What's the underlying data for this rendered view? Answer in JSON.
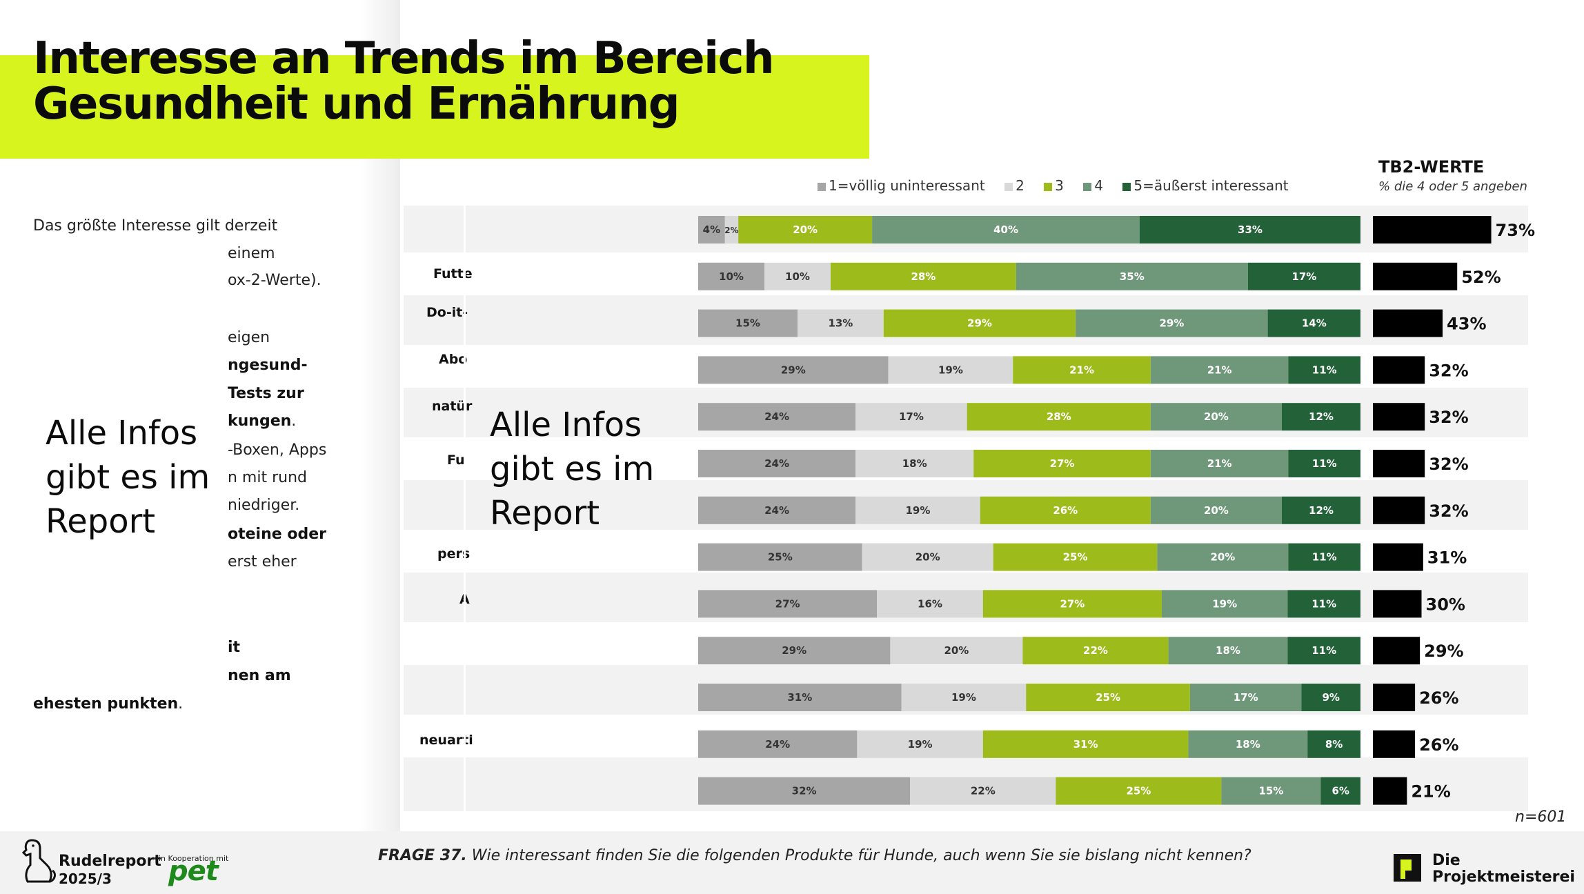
{
  "title_line1": "Interesse an Trends im Bereich",
  "title_line2": "Gesundheit und Ernährung",
  "intro": {
    "line1": "Das größte Interesse gilt derzeit",
    "f_einem": "einem",
    "f_box": "ox-2-Werte).",
    "f_zeigen": "eigen",
    "f_gesund": "ngesund-",
    "f_tests": "Tests zur",
    "f_kungen": "kungen",
    "f_kungen_dot": ".",
    "f_boxen": "-Boxen, Apps",
    "f_rund": "n mit rund",
    "f_niedriger": "niedriger.",
    "f_proteine": "oteine oder",
    "f_erst": "erst eher",
    "f_it": "it",
    "f_nen": "nen am",
    "f_ehesten": "ehesten punkten",
    "f_ehesten_dot": "."
  },
  "overlay_text": {
    "left": [
      "Alle Infos",
      "gibt es im",
      "Report"
    ],
    "center": [
      "Alle Infos",
      "gibt es im",
      "Report"
    ]
  },
  "row_label_fragments": [
    "Futte",
    "Do-it-",
    "Abo",
    "natür",
    "Fu",
    "pers",
    "A",
    "neuarti"
  ],
  "legend": {
    "items": [
      "1=völlig uninteressant",
      "2",
      "3",
      "4",
      "5=äußerst interessant"
    ]
  },
  "colors": {
    "seg1": "#a6a6a6",
    "seg2": "#d9d9d9",
    "seg3": "#9dbb1a",
    "seg4": "#6f977a",
    "seg5": "#236238",
    "tb2": "#000000",
    "accent": "#d7f41e"
  },
  "tb2": {
    "title": "TB2-WERTE",
    "subtitle": "% die 4 oder 5 angeben"
  },
  "chart_data": {
    "type": "bar",
    "orientation": "horizontal-stacked",
    "series_names": [
      "1=völlig uninteressant",
      "2",
      "3",
      "4",
      "5=äußerst interessant"
    ],
    "rows": [
      {
        "values": [
          4,
          2,
          20,
          40,
          33
        ],
        "labels": [
          "4%",
          "2%",
          "20%",
          "40%",
          "33%"
        ],
        "tb2": 73,
        "tb2_label": "73%"
      },
      {
        "values": [
          10,
          10,
          28,
          35,
          17
        ],
        "labels": [
          "10%",
          "10%",
          "28%",
          "35%",
          "17%"
        ],
        "tb2": 52,
        "tb2_label": "52%"
      },
      {
        "values": [
          15,
          13,
          29,
          29,
          14
        ],
        "labels": [
          "15%",
          "13%",
          "29%",
          "29%",
          "14%"
        ],
        "tb2": 43,
        "tb2_label": "43%"
      },
      {
        "values": [
          29,
          19,
          21,
          21,
          11
        ],
        "labels": [
          "29%",
          "19%",
          "21%",
          "21%",
          "11%"
        ],
        "tb2": 32,
        "tb2_label": "32%"
      },
      {
        "values": [
          24,
          17,
          28,
          20,
          12
        ],
        "labels": [
          "24%",
          "17%",
          "28%",
          "20%",
          "12%"
        ],
        "tb2": 32,
        "tb2_label": "32%"
      },
      {
        "values": [
          24,
          18,
          27,
          21,
          11
        ],
        "labels": [
          "24%",
          "18%",
          "27%",
          "21%",
          "11%"
        ],
        "tb2": 32,
        "tb2_label": "32%"
      },
      {
        "values": [
          24,
          19,
          26,
          20,
          12
        ],
        "labels": [
          "24%",
          "19%",
          "26%",
          "20%",
          "12%"
        ],
        "tb2": 32,
        "tb2_label": "32%"
      },
      {
        "values": [
          25,
          20,
          25,
          20,
          11
        ],
        "labels": [
          "25%",
          "20%",
          "25%",
          "20%",
          "11%"
        ],
        "tb2": 31,
        "tb2_label": "31%"
      },
      {
        "values": [
          27,
          16,
          27,
          19,
          11
        ],
        "labels": [
          "27%",
          "16%",
          "27%",
          "19%",
          "11%"
        ],
        "tb2": 30,
        "tb2_label": "30%"
      },
      {
        "values": [
          29,
          20,
          22,
          18,
          11
        ],
        "labels": [
          "29%",
          "20%",
          "22%",
          "18%",
          "11%"
        ],
        "tb2": 29,
        "tb2_label": "29%"
      },
      {
        "values": [
          31,
          19,
          25,
          17,
          9
        ],
        "labels": [
          "31%",
          "19%",
          "25%",
          "17%",
          "9%"
        ],
        "tb2": 26,
        "tb2_label": "26%"
      },
      {
        "values": [
          24,
          19,
          31,
          18,
          8
        ],
        "labels": [
          "24%",
          "19%",
          "31%",
          "18%",
          "8%"
        ],
        "tb2": 26,
        "tb2_label": "26%"
      },
      {
        "values": [
          32,
          22,
          25,
          15,
          6
        ],
        "labels": [
          "32%",
          "22%",
          "25%",
          "15%",
          "6%"
        ],
        "tb2": 21,
        "tb2_label": "21%"
      }
    ]
  },
  "footer": {
    "frage_label": "FRAGE 37.",
    "frage_text": " Wie interessant finden Sie die folgenden Produkte für Hunde, auch wenn Sie sie bislang nicht kennen?",
    "n": "n=601",
    "rudel_name": "Rudelreport",
    "rudel_issue": "2025/3",
    "koop": "in Kooperation mit",
    "pet": "pet",
    "pm_line1": "Die",
    "pm_line2": "Projektmeisterei"
  }
}
